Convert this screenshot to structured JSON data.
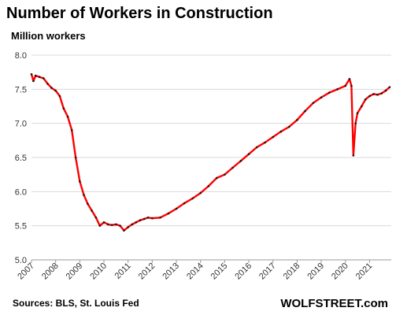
{
  "header": {
    "title": "Number of Workers  in Construction",
    "subtitle": "Million workers"
  },
  "footer": {
    "source": "Sources: BLS, St. Louis Fed",
    "brand": "WOLFSTREET.com"
  },
  "colors": {
    "line": "#ff0000",
    "markers": "#1a1a1a",
    "grid": "#d9d9d9",
    "axis": "#999999"
  },
  "chart_data": {
    "type": "line",
    "title": "Number of Workers  in Construction",
    "ylabel": "Million workers",
    "xlabel": "",
    "ylim": [
      5.0,
      8.0
    ],
    "xlim": [
      2007,
      2021.9
    ],
    "y_ticks": [
      "5.0",
      "5.5",
      "6.0",
      "6.5",
      "7.0",
      "7.5",
      "8.0"
    ],
    "x_ticks": [
      "2007",
      "2008",
      "2009",
      "2010",
      "2011",
      "2012",
      "2013",
      "2014",
      "2015",
      "2016",
      "2017",
      "2018",
      "2019",
      "2020",
      "2021"
    ],
    "grid": "horizontal",
    "series": [
      {
        "x": [
          2007.0,
          2007.08,
          2007.17,
          2007.33,
          2007.5,
          2007.67,
          2007.83,
          2008.0,
          2008.17,
          2008.33,
          2008.5,
          2008.67,
          2008.83,
          2009.0,
          2009.17,
          2009.33,
          2009.5,
          2009.67,
          2009.83,
          2010.0,
          2010.17,
          2010.33,
          2010.5,
          2010.67,
          2010.83,
          2011.0,
          2011.17,
          2011.33,
          2011.5,
          2011.67,
          2011.83,
          2012.0,
          2012.33,
          2012.67,
          2013.0,
          2013.33,
          2013.67,
          2014.0,
          2014.33,
          2014.67,
          2015.0,
          2015.33,
          2015.67,
          2016.0,
          2016.33,
          2016.67,
          2017.0,
          2017.33,
          2017.67,
          2018.0,
          2018.33,
          2018.67,
          2019.0,
          2019.33,
          2019.67,
          2020.0,
          2020.17,
          2020.25,
          2020.33,
          2020.42,
          2020.5,
          2020.67,
          2020.83,
          2021.0,
          2021.17,
          2021.33,
          2021.5,
          2021.67,
          2021.83
        ],
        "values": [
          7.72,
          7.62,
          7.7,
          7.68,
          7.66,
          7.58,
          7.52,
          7.48,
          7.4,
          7.22,
          7.1,
          6.9,
          6.5,
          6.15,
          5.95,
          5.82,
          5.72,
          5.62,
          5.5,
          5.55,
          5.52,
          5.51,
          5.52,
          5.5,
          5.43,
          5.48,
          5.52,
          5.55,
          5.58,
          5.6,
          5.62,
          5.61,
          5.62,
          5.68,
          5.75,
          5.83,
          5.9,
          5.98,
          6.08,
          6.2,
          6.25,
          6.35,
          6.45,
          6.55,
          6.65,
          6.72,
          6.8,
          6.88,
          6.95,
          7.05,
          7.18,
          7.3,
          7.38,
          7.45,
          7.5,
          7.55,
          7.65,
          7.55,
          6.53,
          7.0,
          7.15,
          7.25,
          7.35,
          7.4,
          7.43,
          7.42,
          7.44,
          7.48,
          7.53
        ]
      }
    ]
  }
}
